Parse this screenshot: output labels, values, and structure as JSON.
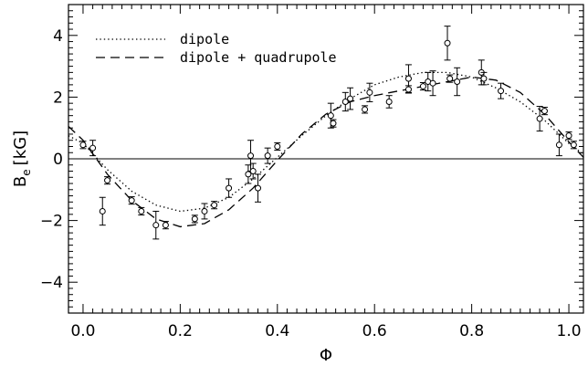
{
  "chart_data": {
    "type": "scatter",
    "xlabel": "Φ",
    "ylabel": "B",
    "ylabel_sub": "e",
    "ylabel_unit": "[kG]",
    "xlim": [
      -0.03,
      1.03
    ],
    "ylim": [
      -5,
      5
    ],
    "x_ticks": [
      0.0,
      0.2,
      0.4,
      0.6,
      0.8,
      1.0
    ],
    "x_tick_labels": [
      "0.0",
      "0.2",
      "0.4",
      "0.6",
      "0.8",
      "1.0"
    ],
    "y_ticks": [
      -4,
      -2,
      0,
      2,
      4
    ],
    "y_tick_labels": [
      "−4",
      "−2",
      "0",
      "2",
      "4"
    ],
    "grid": false,
    "legend": {
      "placement": "top-left",
      "entries": [
        {
          "label": "dipole",
          "style": "dotted"
        },
        {
          "label": "dipole + quadrupole",
          "style": "dashed"
        }
      ]
    },
    "zero_line": 0,
    "observations": [
      {
        "x": 0.0,
        "y": 0.45,
        "err": 0.12
      },
      {
        "x": 0.02,
        "y": 0.35,
        "err": 0.25
      },
      {
        "x": 0.04,
        "y": -1.7,
        "err": 0.45
      },
      {
        "x": 0.05,
        "y": -0.7,
        "err": 0.12
      },
      {
        "x": 0.1,
        "y": -1.35,
        "err": 0.12
      },
      {
        "x": 0.12,
        "y": -1.7,
        "err": 0.12
      },
      {
        "x": 0.15,
        "y": -2.15,
        "err": 0.45
      },
      {
        "x": 0.17,
        "y": -2.15,
        "err": 0.12
      },
      {
        "x": 0.23,
        "y": -1.95,
        "err": 0.12
      },
      {
        "x": 0.25,
        "y": -1.7,
        "err": 0.25
      },
      {
        "x": 0.27,
        "y": -1.5,
        "err": 0.12
      },
      {
        "x": 0.3,
        "y": -0.95,
        "err": 0.3
      },
      {
        "x": 0.34,
        "y": -0.5,
        "err": 0.3
      },
      {
        "x": 0.345,
        "y": 0.1,
        "err": 0.5
      },
      {
        "x": 0.35,
        "y": -0.4,
        "err": 0.25
      },
      {
        "x": 0.36,
        "y": -0.95,
        "err": 0.45
      },
      {
        "x": 0.38,
        "y": 0.1,
        "err": 0.25
      },
      {
        "x": 0.4,
        "y": 0.4,
        "err": 0.12
      },
      {
        "x": 0.51,
        "y": 1.4,
        "err": 0.4
      },
      {
        "x": 0.515,
        "y": 1.15,
        "err": 0.12
      },
      {
        "x": 0.54,
        "y": 1.85,
        "err": 0.3
      },
      {
        "x": 0.55,
        "y": 1.95,
        "err": 0.35
      },
      {
        "x": 0.58,
        "y": 1.6,
        "err": 0.12
      },
      {
        "x": 0.59,
        "y": 2.15,
        "err": 0.3
      },
      {
        "x": 0.63,
        "y": 1.85,
        "err": 0.2
      },
      {
        "x": 0.67,
        "y": 2.6,
        "err": 0.45
      },
      {
        "x": 0.67,
        "y": 2.25,
        "err": 0.12
      },
      {
        "x": 0.7,
        "y": 2.35,
        "err": 0.12
      },
      {
        "x": 0.71,
        "y": 2.5,
        "err": 0.3
      },
      {
        "x": 0.72,
        "y": 2.45,
        "err": 0.4
      },
      {
        "x": 0.75,
        "y": 3.75,
        "err": 0.55
      },
      {
        "x": 0.755,
        "y": 2.6,
        "err": 0.12
      },
      {
        "x": 0.77,
        "y": 2.5,
        "err": 0.45
      },
      {
        "x": 0.82,
        "y": 2.8,
        "err": 0.4
      },
      {
        "x": 0.825,
        "y": 2.6,
        "err": 0.2
      },
      {
        "x": 0.86,
        "y": 2.2,
        "err": 0.25
      },
      {
        "x": 0.94,
        "y": 1.3,
        "err": 0.4
      },
      {
        "x": 0.95,
        "y": 1.55,
        "err": 0.12
      },
      {
        "x": 0.98,
        "y": 0.45,
        "err": 0.35
      },
      {
        "x": 1.0,
        "y": 0.75,
        "err": 0.12
      },
      {
        "x": 1.01,
        "y": 0.45,
        "err": 0.12
      }
    ],
    "series": [
      {
        "style": "dotted",
        "x": [
          -0.03,
          0.0,
          0.05,
          0.1,
          0.15,
          0.2,
          0.25,
          0.3,
          0.35,
          0.4,
          0.45,
          0.5,
          0.55,
          0.6,
          0.65,
          0.7,
          0.75,
          0.8,
          0.85,
          0.9,
          0.95,
          1.0,
          1.03
        ],
        "y": [
          0.75,
          0.5,
          -0.35,
          -1.05,
          -1.5,
          -1.7,
          -1.6,
          -1.25,
          -0.65,
          0.05,
          0.75,
          1.4,
          1.95,
          2.4,
          2.65,
          2.8,
          2.8,
          2.65,
          2.3,
          1.85,
          1.25,
          0.5,
          0.15
        ]
      },
      {
        "style": "dashed",
        "x": [
          -0.03,
          0.0,
          0.05,
          0.1,
          0.15,
          0.2,
          0.25,
          0.3,
          0.35,
          0.4,
          0.45,
          0.5,
          0.55,
          0.6,
          0.65,
          0.7,
          0.75,
          0.8,
          0.85,
          0.9,
          0.95,
          1.0,
          1.03
        ],
        "y": [
          1.05,
          0.6,
          -0.5,
          -1.35,
          -1.95,
          -2.2,
          -2.1,
          -1.65,
          -0.95,
          -0.05,
          0.8,
          1.45,
          1.85,
          2.05,
          2.2,
          2.35,
          2.5,
          2.65,
          2.55,
          2.15,
          1.45,
          0.55,
          0.05
        ]
      }
    ]
  }
}
